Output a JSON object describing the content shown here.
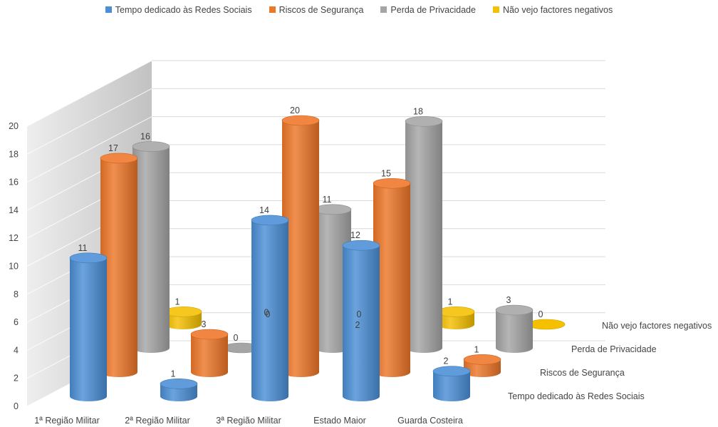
{
  "chart_data": {
    "type": "bar",
    "style": "3d-cylinder",
    "categories": [
      "1ª Região Militar",
      "2ª Região Militar",
      "3ª Região Militar",
      "Estado Maior",
      "Guarda Costeira"
    ],
    "series": [
      {
        "name": "Tempo dedicado às Redes Sociais",
        "color": "#4a8fd6",
        "values": [
          11,
          1,
          14,
          12,
          2
        ]
      },
      {
        "name": "Riscos de Segurança",
        "color": "#ee7628",
        "values": [
          17,
          3,
          20,
          15,
          1
        ]
      },
      {
        "name": "Perda de Privacidade",
        "color": "#a5a5a5",
        "values": [
          16,
          0,
          11,
          18,
          3
        ]
      },
      {
        "name": "Não vejo factores negativos",
        "color": "#f5c000",
        "values": [
          1,
          0,
          0,
          1,
          0
        ]
      }
    ],
    "extra_labels": [
      {
        "category": "3ª Região Militar",
        "series": "Tempo dedicado às Redes Sociais",
        "text": "0"
      },
      {
        "category": "Estado Maior",
        "series": "Tempo dedicado às Redes Sociais",
        "text": "2"
      }
    ],
    "y_ticks": [
      "0",
      "2",
      "4",
      "6",
      "8",
      "10",
      "12",
      "14",
      "16",
      "18",
      "20"
    ],
    "ylim": [
      0,
      20
    ],
    "grid": true,
    "legend_position": "top"
  }
}
